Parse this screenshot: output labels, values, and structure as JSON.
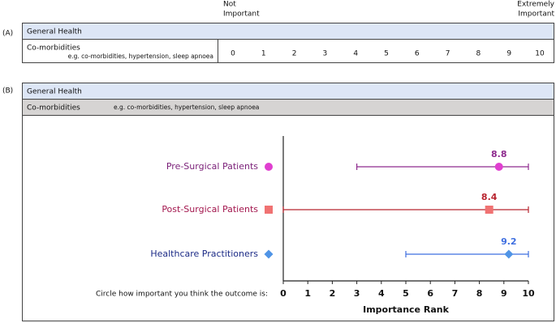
{
  "panel_a": {
    "label": "(A)",
    "low_anchor": [
      "Not",
      "Important"
    ],
    "high_anchor": [
      "Extremely",
      "Important"
    ],
    "header": "General Health",
    "item": "Co-morbidities",
    "example": "e.g. co-morbidities, hypertension, sleep apnoea",
    "scale": [
      0,
      1,
      2,
      3,
      4,
      5,
      6,
      7,
      8,
      9,
      10
    ]
  },
  "panel_b": {
    "label": "(B)",
    "header": "General Health",
    "item": "Co-morbidities",
    "example": "e.g. co-morbidities, hypertension, sleep apnoea",
    "prompt": "Circle how important you think the outcome is:"
  },
  "chart_data": {
    "type": "errorbar",
    "xlabel": "Importance Rank",
    "xlim": [
      0,
      10
    ],
    "xticks": [
      0,
      1,
      2,
      3,
      4,
      5,
      6,
      7,
      8,
      9,
      10
    ],
    "series": [
      {
        "name": "Pre-Surgical Patients",
        "mean": 8.8,
        "min": 3,
        "max": 10,
        "color": "#8e2b8e",
        "marker": "circle",
        "marker_color": "#e03fd0",
        "label_color": "#7a1f78"
      },
      {
        "name": "Post-Surgical Patients",
        "mean": 8.4,
        "min": 0,
        "max": 10,
        "color": "#b8242f",
        "marker": "square",
        "marker_color": "#f07272",
        "label_color": "#a3174e"
      },
      {
        "name": "Healthcare Practitioners",
        "mean": 9.2,
        "min": 5,
        "max": 10,
        "color": "#3f6fe0",
        "marker": "diamond",
        "marker_color": "#4f94e6",
        "label_color": "#1b2a86"
      }
    ]
  }
}
